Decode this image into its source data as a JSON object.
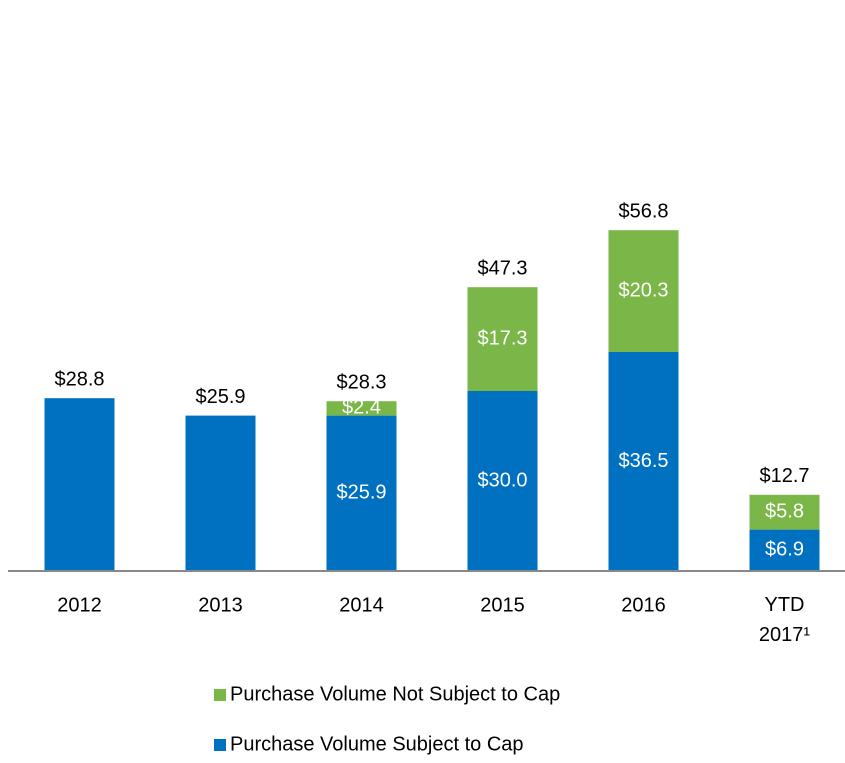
{
  "chart_data": {
    "type": "stacked_bar",
    "categories": [
      "2012",
      "2013",
      "2014",
      "2015",
      "2016",
      "YTD 2017¹"
    ],
    "series": [
      {
        "name": "Purchase Volume Subject to Cap",
        "color": "#0070c0",
        "values": [
          28.8,
          25.9,
          25.9,
          30.0,
          36.5,
          6.9
        ],
        "value_labels": [
          null,
          null,
          "$25.9",
          "$30.0",
          "$36.5",
          "$6.9"
        ]
      },
      {
        "name": "Purchase Volume Not Subject to Cap",
        "color": "#7ab648",
        "values": [
          null,
          null,
          2.4,
          17.3,
          20.3,
          5.8
        ],
        "value_labels": [
          null,
          null,
          "$2.4",
          "$17.3",
          "$20.3",
          "$5.8"
        ]
      }
    ],
    "totals": [
      28.8,
      25.9,
      28.3,
      47.3,
      56.8,
      12.7
    ],
    "total_labels": [
      "$28.8",
      "$25.9",
      "$28.3",
      "$47.3",
      "$56.8",
      "$12.7"
    ],
    "ylim": [
      0,
      60
    ]
  }
}
